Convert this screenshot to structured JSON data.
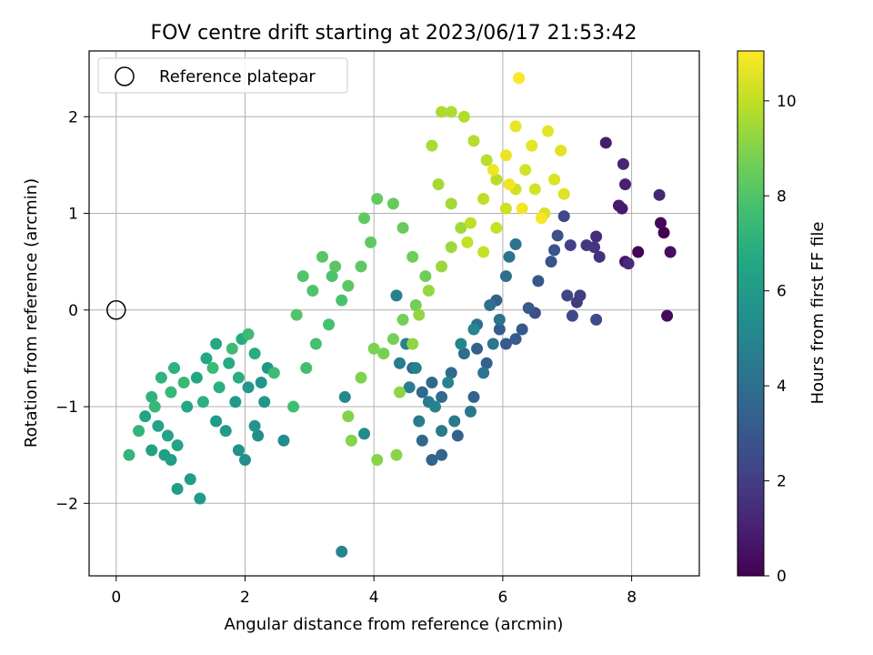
{
  "chart_data": {
    "type": "scatter",
    "title": "FOV centre drift starting at 2023/06/17 21:53:42",
    "xlabel": "Angular distance from reference (arcmin)",
    "ylabel": "Rotation from reference (arcmin)",
    "xlim": [
      -0.42,
      9.05
    ],
    "ylim": [
      -2.75,
      2.68
    ],
    "xticks": [
      0,
      2,
      4,
      6,
      8
    ],
    "yticks": [
      -2,
      -1,
      0,
      1,
      2
    ],
    "grid": true,
    "legend": {
      "placement": "top-left",
      "entries": [
        "Reference platepar"
      ]
    },
    "reference_point": {
      "x": 0,
      "y": 0,
      "label": "Reference platepar"
    },
    "colorbar": {
      "label": "Hours from first FF file",
      "range": [
        0,
        11.05
      ],
      "ticks": [
        0,
        2,
        4,
        6,
        8,
        10
      ],
      "colormap": "viridis"
    },
    "colormap_stops": [
      "#440154",
      "#482475",
      "#414487",
      "#355f8d",
      "#2a788e",
      "#21918c",
      "#22a884",
      "#44bf70",
      "#7ad151",
      "#bddf26",
      "#fde725"
    ],
    "points": [
      [
        8.5,
        0.8,
        0.0
      ],
      [
        8.1,
        0.6,
        0.1
      ],
      [
        8.45,
        0.9,
        0.2
      ],
      [
        8.55,
        -0.06,
        0.3
      ],
      [
        8.6,
        0.6,
        0.4
      ],
      [
        7.9,
        0.5,
        0.6
      ],
      [
        7.85,
        1.05,
        0.7
      ],
      [
        7.8,
        1.08,
        0.8
      ],
      [
        7.6,
        1.73,
        0.9
      ],
      [
        7.9,
        1.3,
        1.0
      ],
      [
        7.87,
        1.51,
        1.1
      ],
      [
        8.43,
        1.19,
        1.2
      ],
      [
        7.95,
        0.48,
        1.3
      ],
      [
        7.45,
        0.76,
        1.4
      ],
      [
        7.5,
        0.55,
        1.6
      ],
      [
        7.42,
        0.65,
        1.7
      ],
      [
        7.3,
        0.67,
        1.8
      ],
      [
        7.15,
        0.08,
        1.9
      ],
      [
        7.2,
        0.15,
        2.0
      ],
      [
        7.05,
        0.67,
        2.1
      ],
      [
        7.0,
        0.15,
        2.2
      ],
      [
        6.95,
        0.97,
        2.3
      ],
      [
        7.08,
        -0.06,
        2.4
      ],
      [
        7.45,
        -0.1,
        2.5
      ],
      [
        6.5,
        -0.03,
        2.6
      ],
      [
        6.85,
        0.77,
        2.7
      ],
      [
        6.75,
        0.5,
        2.8
      ],
      [
        6.8,
        0.62,
        2.9
      ],
      [
        6.55,
        0.3,
        3.0
      ],
      [
        6.4,
        0.02,
        3.05
      ],
      [
        6.3,
        -0.2,
        3.1
      ],
      [
        6.2,
        -0.3,
        3.15
      ],
      [
        6.05,
        -0.35,
        3.2
      ],
      [
        5.95,
        -0.2,
        3.25
      ],
      [
        5.9,
        0.1,
        3.3
      ],
      [
        5.75,
        -0.55,
        3.35
      ],
      [
        5.6,
        -0.4,
        3.4
      ],
      [
        5.55,
        -0.9,
        3.45
      ],
      [
        5.3,
        -1.3,
        3.5
      ],
      [
        5.05,
        -1.5,
        3.55
      ],
      [
        4.9,
        -1.55,
        3.6
      ],
      [
        4.75,
        -1.35,
        3.65
      ],
      [
        4.6,
        -0.6,
        3.7
      ],
      [
        4.75,
        -0.85,
        3.75
      ],
      [
        4.9,
        -0.75,
        3.8
      ],
      [
        5.05,
        -0.9,
        3.85
      ],
      [
        5.2,
        -0.65,
        3.9
      ],
      [
        5.4,
        -0.45,
        3.95
      ],
      [
        5.6,
        -0.15,
        4.0
      ],
      [
        5.8,
        0.05,
        4.05
      ],
      [
        6.05,
        0.35,
        4.1
      ],
      [
        6.2,
        0.68,
        4.15
      ],
      [
        6.1,
        0.55,
        4.2
      ],
      [
        5.95,
        -0.1,
        4.25
      ],
      [
        5.85,
        -0.35,
        4.3
      ],
      [
        5.7,
        -0.65,
        4.35
      ],
      [
        5.5,
        -1.05,
        4.4
      ],
      [
        5.25,
        -1.15,
        4.45
      ],
      [
        5.05,
        -1.25,
        4.5
      ],
      [
        4.85,
        -0.95,
        4.55
      ],
      [
        4.7,
        -1.15,
        4.6
      ],
      [
        4.55,
        -0.8,
        4.65
      ],
      [
        4.4,
        -0.55,
        4.7
      ],
      [
        4.35,
        0.15,
        4.75
      ],
      [
        4.5,
        -0.35,
        4.8
      ],
      [
        4.65,
        -0.6,
        4.85
      ],
      [
        4.95,
        -1.0,
        4.9
      ],
      [
        5.15,
        -0.75,
        4.95
      ],
      [
        5.35,
        -0.35,
        5.0
      ],
      [
        5.55,
        -0.2,
        5.05
      ],
      [
        3.5,
        -2.5,
        5.1
      ],
      [
        3.55,
        -0.9,
        5.15
      ],
      [
        3.85,
        -1.28,
        5.2
      ],
      [
        2.6,
        -1.35,
        5.3
      ],
      [
        2.2,
        -1.3,
        5.4
      ],
      [
        2.0,
        -1.55,
        5.5
      ],
      [
        1.9,
        -1.45,
        5.6
      ],
      [
        2.15,
        -1.2,
        5.65
      ],
      [
        2.25,
        -0.75,
        5.7
      ],
      [
        2.3,
        -0.95,
        5.75
      ],
      [
        2.35,
        -0.6,
        5.8
      ],
      [
        2.05,
        -0.8,
        5.85
      ],
      [
        1.85,
        -0.95,
        5.9
      ],
      [
        1.7,
        -1.25,
        5.95
      ],
      [
        1.55,
        -1.15,
        6.0
      ],
      [
        1.3,
        -1.95,
        6.05
      ],
      [
        1.15,
        -1.75,
        6.1
      ],
      [
        0.95,
        -1.85,
        6.15
      ],
      [
        0.85,
        -1.55,
        6.2
      ],
      [
        0.75,
        -1.5,
        6.25
      ],
      [
        0.55,
        -1.45,
        6.3
      ],
      [
        0.45,
        -1.1,
        6.35
      ],
      [
        0.65,
        -1.2,
        6.4
      ],
      [
        0.8,
        -1.3,
        6.45
      ],
      [
        0.95,
        -1.4,
        6.5
      ],
      [
        1.1,
        -1.0,
        6.55
      ],
      [
        1.25,
        -0.7,
        6.6
      ],
      [
        1.4,
        -0.5,
        6.65
      ],
      [
        1.55,
        -0.35,
        6.7
      ],
      [
        1.75,
        -0.55,
        6.75
      ],
      [
        1.95,
        -0.3,
        6.8
      ],
      [
        2.15,
        -0.45,
        6.85
      ],
      [
        1.9,
        -0.7,
        6.9
      ],
      [
        1.6,
        -0.8,
        6.95
      ],
      [
        1.35,
        -0.95,
        7.0
      ],
      [
        0.9,
        -0.6,
        7.05
      ],
      [
        0.7,
        -0.7,
        7.1
      ],
      [
        0.55,
        -0.9,
        7.15
      ],
      [
        0.35,
        -1.25,
        7.2
      ],
      [
        0.2,
        -1.5,
        7.25
      ],
      [
        0.6,
        -1.0,
        7.3
      ],
      [
        0.85,
        -0.85,
        7.35
      ],
      [
        1.05,
        -0.75,
        7.4
      ],
      [
        1.5,
        -0.6,
        7.45
      ],
      [
        1.8,
        -0.4,
        7.5
      ],
      [
        2.05,
        -0.25,
        7.55
      ],
      [
        2.45,
        -0.65,
        7.6
      ],
      [
        2.75,
        -1.0,
        7.65
      ],
      [
        2.95,
        -0.6,
        7.7
      ],
      [
        3.1,
        -0.35,
        7.75
      ],
      [
        3.3,
        -0.15,
        7.8
      ],
      [
        3.5,
        0.1,
        7.85
      ],
      [
        3.35,
        0.35,
        7.9
      ],
      [
        3.05,
        0.2,
        7.95
      ],
      [
        2.8,
        -0.05,
        8.0
      ],
      [
        2.9,
        0.35,
        8.05
      ],
      [
        3.2,
        0.55,
        8.1
      ],
      [
        3.4,
        0.45,
        8.15
      ],
      [
        3.6,
        0.25,
        8.2
      ],
      [
        3.8,
        0.45,
        8.25
      ],
      [
        3.95,
        0.7,
        8.3
      ],
      [
        3.85,
        0.95,
        8.35
      ],
      [
        4.05,
        1.15,
        8.4
      ],
      [
        4.3,
        1.1,
        8.45
      ],
      [
        4.45,
        0.85,
        8.5
      ],
      [
        4.6,
        0.55,
        8.55
      ],
      [
        4.8,
        0.35,
        8.6
      ],
      [
        4.65,
        0.05,
        8.65
      ],
      [
        4.45,
        -0.1,
        8.7
      ],
      [
        4.3,
        -0.3,
        8.75
      ],
      [
        4.15,
        -0.45,
        8.8
      ],
      [
        4.0,
        -0.4,
        8.85
      ],
      [
        3.8,
        -0.7,
        8.9
      ],
      [
        3.6,
        -1.1,
        8.95
      ],
      [
        3.65,
        -1.35,
        9.0
      ],
      [
        4.05,
        -1.55,
        9.05
      ],
      [
        4.35,
        -1.5,
        9.1
      ],
      [
        4.4,
        -0.85,
        9.15
      ],
      [
        4.6,
        -0.35,
        9.2
      ],
      [
        4.7,
        -0.05,
        9.25
      ],
      [
        4.85,
        0.2,
        9.3
      ],
      [
        5.05,
        0.45,
        9.35
      ],
      [
        5.2,
        0.65,
        9.4
      ],
      [
        5.35,
        0.85,
        9.45
      ],
      [
        5.2,
        1.1,
        9.5
      ],
      [
        5.0,
        1.3,
        9.55
      ],
      [
        4.9,
        1.7,
        9.6
      ],
      [
        5.05,
        2.05,
        9.65
      ],
      [
        5.2,
        2.05,
        9.7
      ],
      [
        5.4,
        2.0,
        9.75
      ],
      [
        5.55,
        1.75,
        9.8
      ],
      [
        5.75,
        1.55,
        9.85
      ],
      [
        5.9,
        1.35,
        9.9
      ],
      [
        5.7,
        1.15,
        9.95
      ],
      [
        5.5,
        0.9,
        10.0
      ],
      [
        5.45,
        0.7,
        10.05
      ],
      [
        5.7,
        0.6,
        10.1
      ],
      [
        5.9,
        0.85,
        10.15
      ],
      [
        6.05,
        1.05,
        10.2
      ],
      [
        6.2,
        1.25,
        10.25
      ],
      [
        6.35,
        1.45,
        10.3
      ],
      [
        6.5,
        1.25,
        10.35
      ],
      [
        6.65,
        1.0,
        10.4
      ],
      [
        6.8,
        1.35,
        10.45
      ],
      [
        6.95,
        1.2,
        10.5
      ],
      [
        6.9,
        1.65,
        10.55
      ],
      [
        6.7,
        1.85,
        10.6
      ],
      [
        6.45,
        1.7,
        10.65
      ],
      [
        6.2,
        1.9,
        10.7
      ],
      [
        6.05,
        1.6,
        10.75
      ],
      [
        5.85,
        1.45,
        10.8
      ],
      [
        6.1,
        1.3,
        10.85
      ],
      [
        6.3,
        1.05,
        10.9
      ],
      [
        6.6,
        0.95,
        10.95
      ],
      [
        6.25,
        2.4,
        11.0
      ]
    ]
  }
}
